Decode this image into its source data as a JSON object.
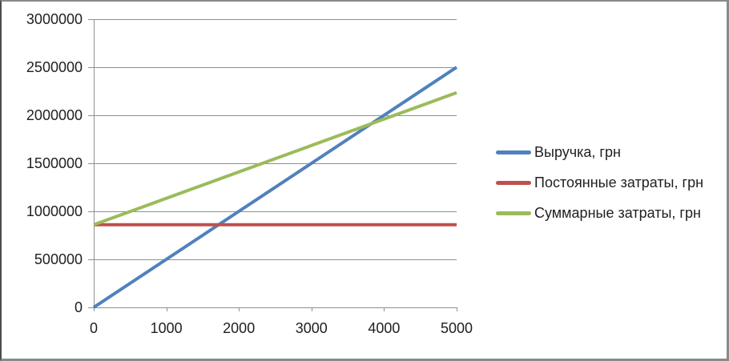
{
  "window": {
    "background": "#ffffff",
    "border_color": "#8a8a8a"
  },
  "chart_data": {
    "type": "line",
    "title": "",
    "xlabel": "",
    "ylabel": "",
    "x": [
      0,
      1000,
      2000,
      3000,
      4000,
      5000
    ],
    "xticks": [
      0,
      1000,
      2000,
      3000,
      4000,
      5000
    ],
    "yticks": [
      0,
      500000,
      1000000,
      1500000,
      2000000,
      2500000,
      3000000
    ],
    "xlim": [
      0,
      5000
    ],
    "ylim": [
      0,
      3000000
    ],
    "grid": "horizontal",
    "legend_position": "right",
    "axis_color": "#909090",
    "gridline_color": "#909090",
    "text_color": "#1f1f1f",
    "series": [
      {
        "name": "Выручка, грн",
        "color": "#4F81BD",
        "values": [
          0,
          500000,
          1000000,
          1500000,
          2000000,
          2500000
        ]
      },
      {
        "name": "Постоянные затраты, грн",
        "color": "#C0504D",
        "values": [
          860000,
          860000,
          860000,
          860000,
          860000,
          860000
        ]
      },
      {
        "name": "Суммарные затраты, грн",
        "color": "#9BBB59",
        "values": [
          860000,
          1135000,
          1410000,
          1685000,
          1960000,
          2235000
        ]
      }
    ]
  }
}
